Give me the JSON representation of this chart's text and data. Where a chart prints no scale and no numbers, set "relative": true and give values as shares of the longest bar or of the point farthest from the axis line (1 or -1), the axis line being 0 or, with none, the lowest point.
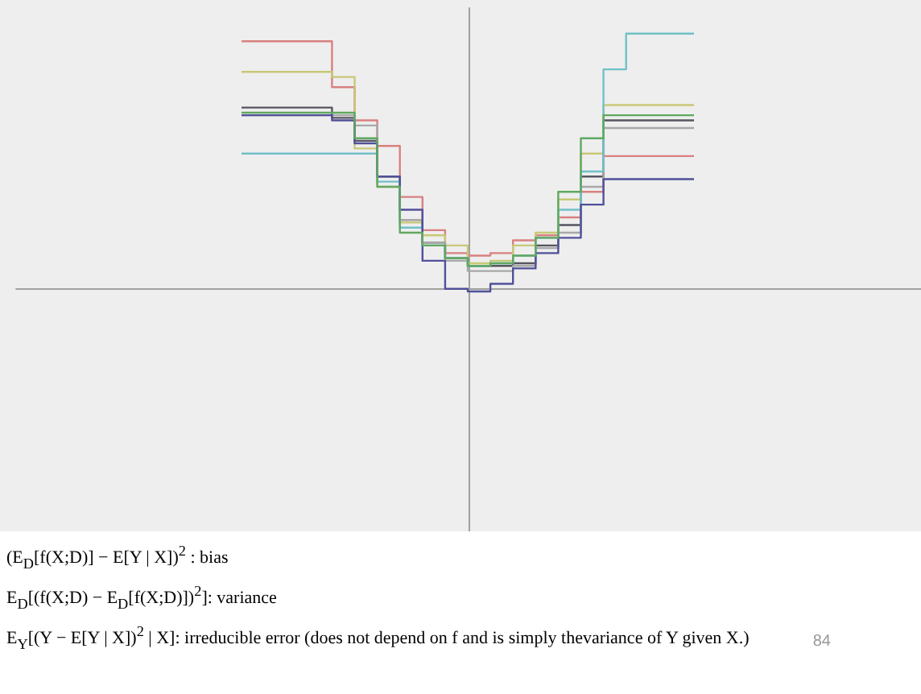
{
  "chart_data": {
    "type": "step",
    "relative": true,
    "grid": false,
    "marker": "none",
    "line_style": "solid",
    "categories": [
      null,
      null,
      null,
      null,
      null,
      null,
      null,
      null,
      null,
      null,
      null,
      null,
      null,
      null,
      null,
      null,
      null,
      null,
      null,
      null,
      null
    ],
    "series": [
      {
        "color": "#d98080",
        "values": [
          0.97,
          0.97,
          0.97,
          0.97,
          0.79,
          0.66,
          0.56,
          0.36,
          0.23,
          0.14,
          0.13,
          0.14,
          0.19,
          0.21,
          0.28,
          0.38,
          0.52,
          0.52,
          0.52,
          0.52,
          0.52
        ]
      },
      {
        "color": "#c8c878",
        "values": [
          0.85,
          0.85,
          0.85,
          0.85,
          0.83,
          0.55,
          0.4,
          0.26,
          0.21,
          0.17,
          0.1,
          0.11,
          0.17,
          0.22,
          0.35,
          0.53,
          0.72,
          0.72,
          0.72,
          0.72,
          0.72
        ]
      },
      {
        "color": "#555560",
        "values": [
          0.71,
          0.71,
          0.71,
          0.71,
          0.67,
          0.58,
          0.44,
          0.27,
          0.18,
          0.12,
          0.09,
          0.09,
          0.1,
          0.17,
          0.25,
          0.44,
          0.66,
          0.66,
          0.66,
          0.66,
          0.66
        ]
      },
      {
        "color": "#a8a8a8",
        "values": [
          0.68,
          0.68,
          0.68,
          0.68,
          0.68,
          0.64,
          0.44,
          0.27,
          0.18,
          0.11,
          0.07,
          0.07,
          0.09,
          0.16,
          0.22,
          0.4,
          0.63,
          0.63,
          0.63,
          0.63,
          0.63
        ]
      },
      {
        "color": "#70c0c8",
        "values": [
          0.53,
          0.53,
          0.53,
          0.53,
          0.53,
          0.53,
          0.42,
          0.24,
          0.17,
          0.12,
          0.09,
          0.1,
          0.13,
          0.2,
          0.31,
          0.46,
          0.86,
          1,
          1,
          1,
          1
        ]
      },
      {
        "color": "#50509a",
        "values": [
          0.68,
          0.68,
          0.68,
          0.68,
          0.66,
          0.57,
          0.44,
          0.31,
          0.11,
          0.0,
          -0.01,
          0.02,
          0.08,
          0.14,
          0.2,
          0.33,
          0.43,
          0.43,
          0.43,
          0.43,
          0.43
        ]
      },
      {
        "color": "#60a860",
        "values": [
          0.69,
          0.69,
          0.69,
          0.69,
          0.69,
          0.59,
          0.4,
          0.22,
          0.17,
          0.12,
          0.09,
          0.1,
          0.13,
          0.2,
          0.38,
          0.59,
          0.68,
          0.68,
          0.68,
          0.68,
          0.68
        ]
      }
    ],
    "annotations": [
      "(E$_{D}$[f(X;D)] − E[Y | X])$^{2}$ : bias",
      "E$_{D}$[(f(X;D) − E$_{D}$[f(X;D)])$^{2}$]: variance",
      "E$_{Y}$[(Y − E[Y | X])$^{2}$ | X]: irreducible error (does not depend on f and is simply thevariance of Y given X.)",
      "84"
    ]
  }
}
